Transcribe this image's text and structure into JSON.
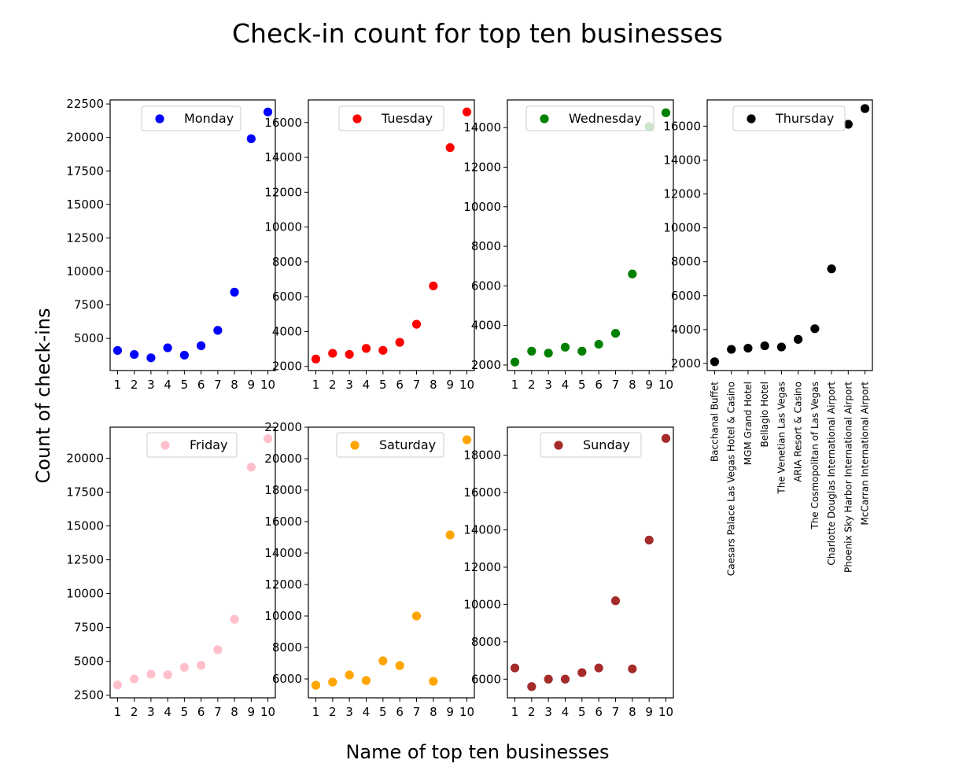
{
  "figure": {
    "title": "Check-in count for top ten businesses",
    "xlabel": "Name of top ten businesses",
    "ylabel": "Count of check-ins"
  },
  "business_names": [
    "Bacchanal Buffet",
    "Caesars Palace Las Vegas Hotel & Casino",
    "MGM Grand Hotel",
    "Bellagio Hotel",
    "The Venetian Las Vegas",
    "ARIA Resort & Casino",
    "The Cosmopolitan of Las Vegas",
    "Charlotte Douglas International Airport",
    "Phoenix Sky Harbor International Airport",
    "McCarran International Airport"
  ],
  "chart_data": [
    {
      "type": "scatter",
      "series_name": "Monday",
      "color": "#0000ff",
      "x": [
        1,
        2,
        3,
        4,
        5,
        6,
        7,
        8,
        9,
        10
      ],
      "y": [
        4100,
        3800,
        3550,
        4300,
        3750,
        4450,
        5600,
        8450,
        19900,
        21900
      ],
      "ylim": [
        2600,
        22800
      ],
      "yticks": [
        5000,
        7500,
        10000,
        12500,
        15000,
        17500,
        20000,
        22500
      ],
      "xtick_labels": [
        "1",
        "2",
        "3",
        "4",
        "5",
        "6",
        "7",
        "8",
        "9",
        "10"
      ],
      "legend": "top-center"
    },
    {
      "type": "scatter",
      "series_name": "Tuesday",
      "color": "#ff0000",
      "x": [
        1,
        2,
        3,
        4,
        5,
        6,
        7,
        8,
        9,
        10
      ],
      "y": [
        2420,
        2750,
        2690,
        3030,
        2920,
        3380,
        4420,
        6620,
        14560,
        16610
      ],
      "ylim": [
        1760,
        17300
      ],
      "yticks": [
        2000,
        4000,
        6000,
        8000,
        10000,
        12000,
        14000,
        16000
      ],
      "xtick_labels": [
        "1",
        "2",
        "3",
        "4",
        "5",
        "6",
        "7",
        "8",
        "9",
        "10"
      ],
      "legend": "top-center"
    },
    {
      "type": "scatter",
      "series_name": "Wednesday",
      "color": "#008000",
      "x": [
        1,
        2,
        3,
        4,
        5,
        6,
        7,
        8,
        9,
        10
      ],
      "y": [
        2150,
        2700,
        2600,
        2900,
        2700,
        3050,
        3600,
        6600,
        14050,
        14750
      ],
      "ylim": [
        1720,
        15400
      ],
      "yticks": [
        2000,
        4000,
        6000,
        8000,
        10000,
        12000,
        14000
      ],
      "xtick_labels": [
        "1",
        "2",
        "3",
        "4",
        "5",
        "6",
        "7",
        "8",
        "9",
        "10"
      ],
      "legend": "top-center"
    },
    {
      "type": "scatter",
      "series_name": "Thursday",
      "color": "#000000",
      "x": [
        1,
        2,
        3,
        4,
        5,
        6,
        7,
        8,
        9,
        10
      ],
      "y": [
        2100,
        2830,
        2900,
        3040,
        2970,
        3420,
        4050,
        7580,
        16110,
        17040
      ],
      "ylim": [
        1580,
        17550
      ],
      "yticks": [
        2000,
        4000,
        6000,
        8000,
        10000,
        12000,
        14000,
        16000
      ],
      "xtick_labels": "business_names",
      "legend": "top-center"
    },
    {
      "type": "scatter",
      "series_name": "Friday",
      "color": "#ffc0cb",
      "x": [
        1,
        2,
        3,
        4,
        5,
        6,
        7,
        8,
        9,
        10
      ],
      "y": [
        3250,
        3700,
        4050,
        4000,
        4550,
        4700,
        5850,
        8100,
        19350,
        21450
      ],
      "ylim": [
        2300,
        22300
      ],
      "yticks": [
        2500,
        5000,
        7500,
        10000,
        12500,
        15000,
        17500,
        20000
      ],
      "xtick_labels": [
        "1",
        "2",
        "3",
        "4",
        "5",
        "6",
        "7",
        "8",
        "9",
        "10"
      ],
      "legend": "top-center"
    },
    {
      "type": "scatter",
      "series_name": "Saturday",
      "color": "#ffa500",
      "x": [
        1,
        2,
        3,
        4,
        5,
        6,
        7,
        8,
        9,
        10
      ],
      "y": [
        5600,
        5800,
        6250,
        5900,
        7150,
        6850,
        10000,
        5850,
        15150,
        21200
      ],
      "ylim": [
        4800,
        22000
      ],
      "yticks": [
        6000,
        8000,
        10000,
        12000,
        14000,
        16000,
        18000,
        20000,
        22000
      ],
      "xtick_labels": [
        "1",
        "2",
        "3",
        "4",
        "5",
        "6",
        "7",
        "8",
        "9",
        "10"
      ],
      "legend": "top-center"
    },
    {
      "type": "scatter",
      "series_name": "Sunday",
      "color": "#a52a2a",
      "x": [
        1,
        2,
        3,
        4,
        5,
        6,
        7,
        8,
        9,
        10
      ],
      "y": [
        6600,
        5600,
        6000,
        6000,
        6350,
        6600,
        10200,
        6550,
        13450,
        18900
      ],
      "ylim": [
        5000,
        19500
      ],
      "yticks": [
        6000,
        8000,
        10000,
        12000,
        14000,
        16000,
        18000
      ],
      "xtick_labels": [
        "1",
        "2",
        "3",
        "4",
        "5",
        "6",
        "7",
        "8",
        "9",
        "10"
      ],
      "legend": "top-center"
    }
  ]
}
